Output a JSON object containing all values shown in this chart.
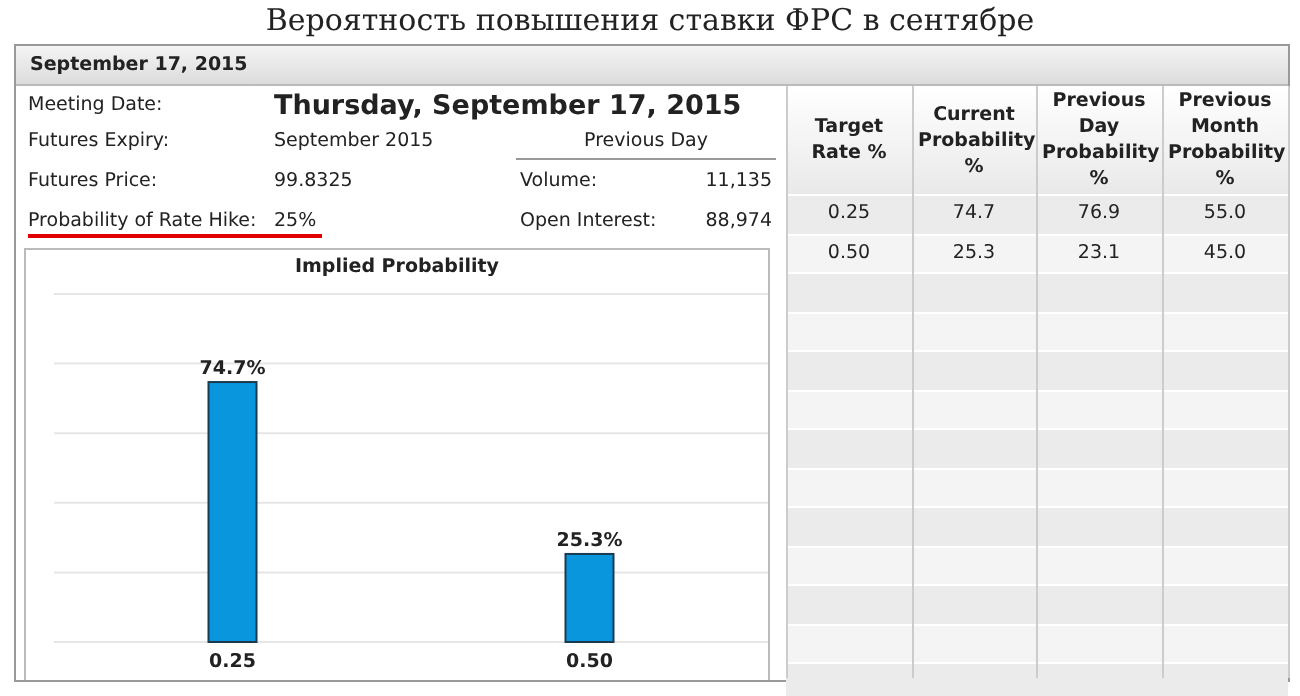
{
  "chart_data": [
    {
      "type": "other",
      "title": "Вероятность повышения ставки ФРС в сентябре",
      "annotations": [
        "September 17, 2015",
        "Meeting Date:",
        "Thursday, September 17, 2015",
        "Futures Expiry:",
        "September 2015",
        "Previous Day",
        "Futures Price:",
        "99.8325",
        "Volume:",
        "11,135",
        "Probability of Rate Hike:",
        "25%",
        "Open Interest:",
        "88,974",
        "Target Rate %",
        "Current Probability %",
        "Previous Day Probability %",
        "Previous Month Probability %",
        "0.25",
        "74.7",
        "76.9",
        "55.0",
        "0.50",
        "25.3",
        "23.1",
        "45.0"
      ]
    },
    {
      "type": "bar",
      "title": "Implied Probability",
      "categories": [
        "0.25",
        "0.50"
      ],
      "values": [
        74.7,
        25.3
      ],
      "value_labels": [
        "74.7%",
        "25.3%"
      ],
      "color": "#0a96dc",
      "ylim": [
        0,
        100
      ],
      "yticks": [
        {
          "value": 0,
          "label": null
        },
        {
          "value": 20,
          "label": null
        },
        {
          "value": 40,
          "label": null
        },
        {
          "value": 60,
          "label": null
        },
        {
          "value": 80,
          "label": null
        },
        {
          "value": 100,
          "label": null
        }
      ],
      "grid": "y",
      "tick_labels": false
    }
  ]
}
